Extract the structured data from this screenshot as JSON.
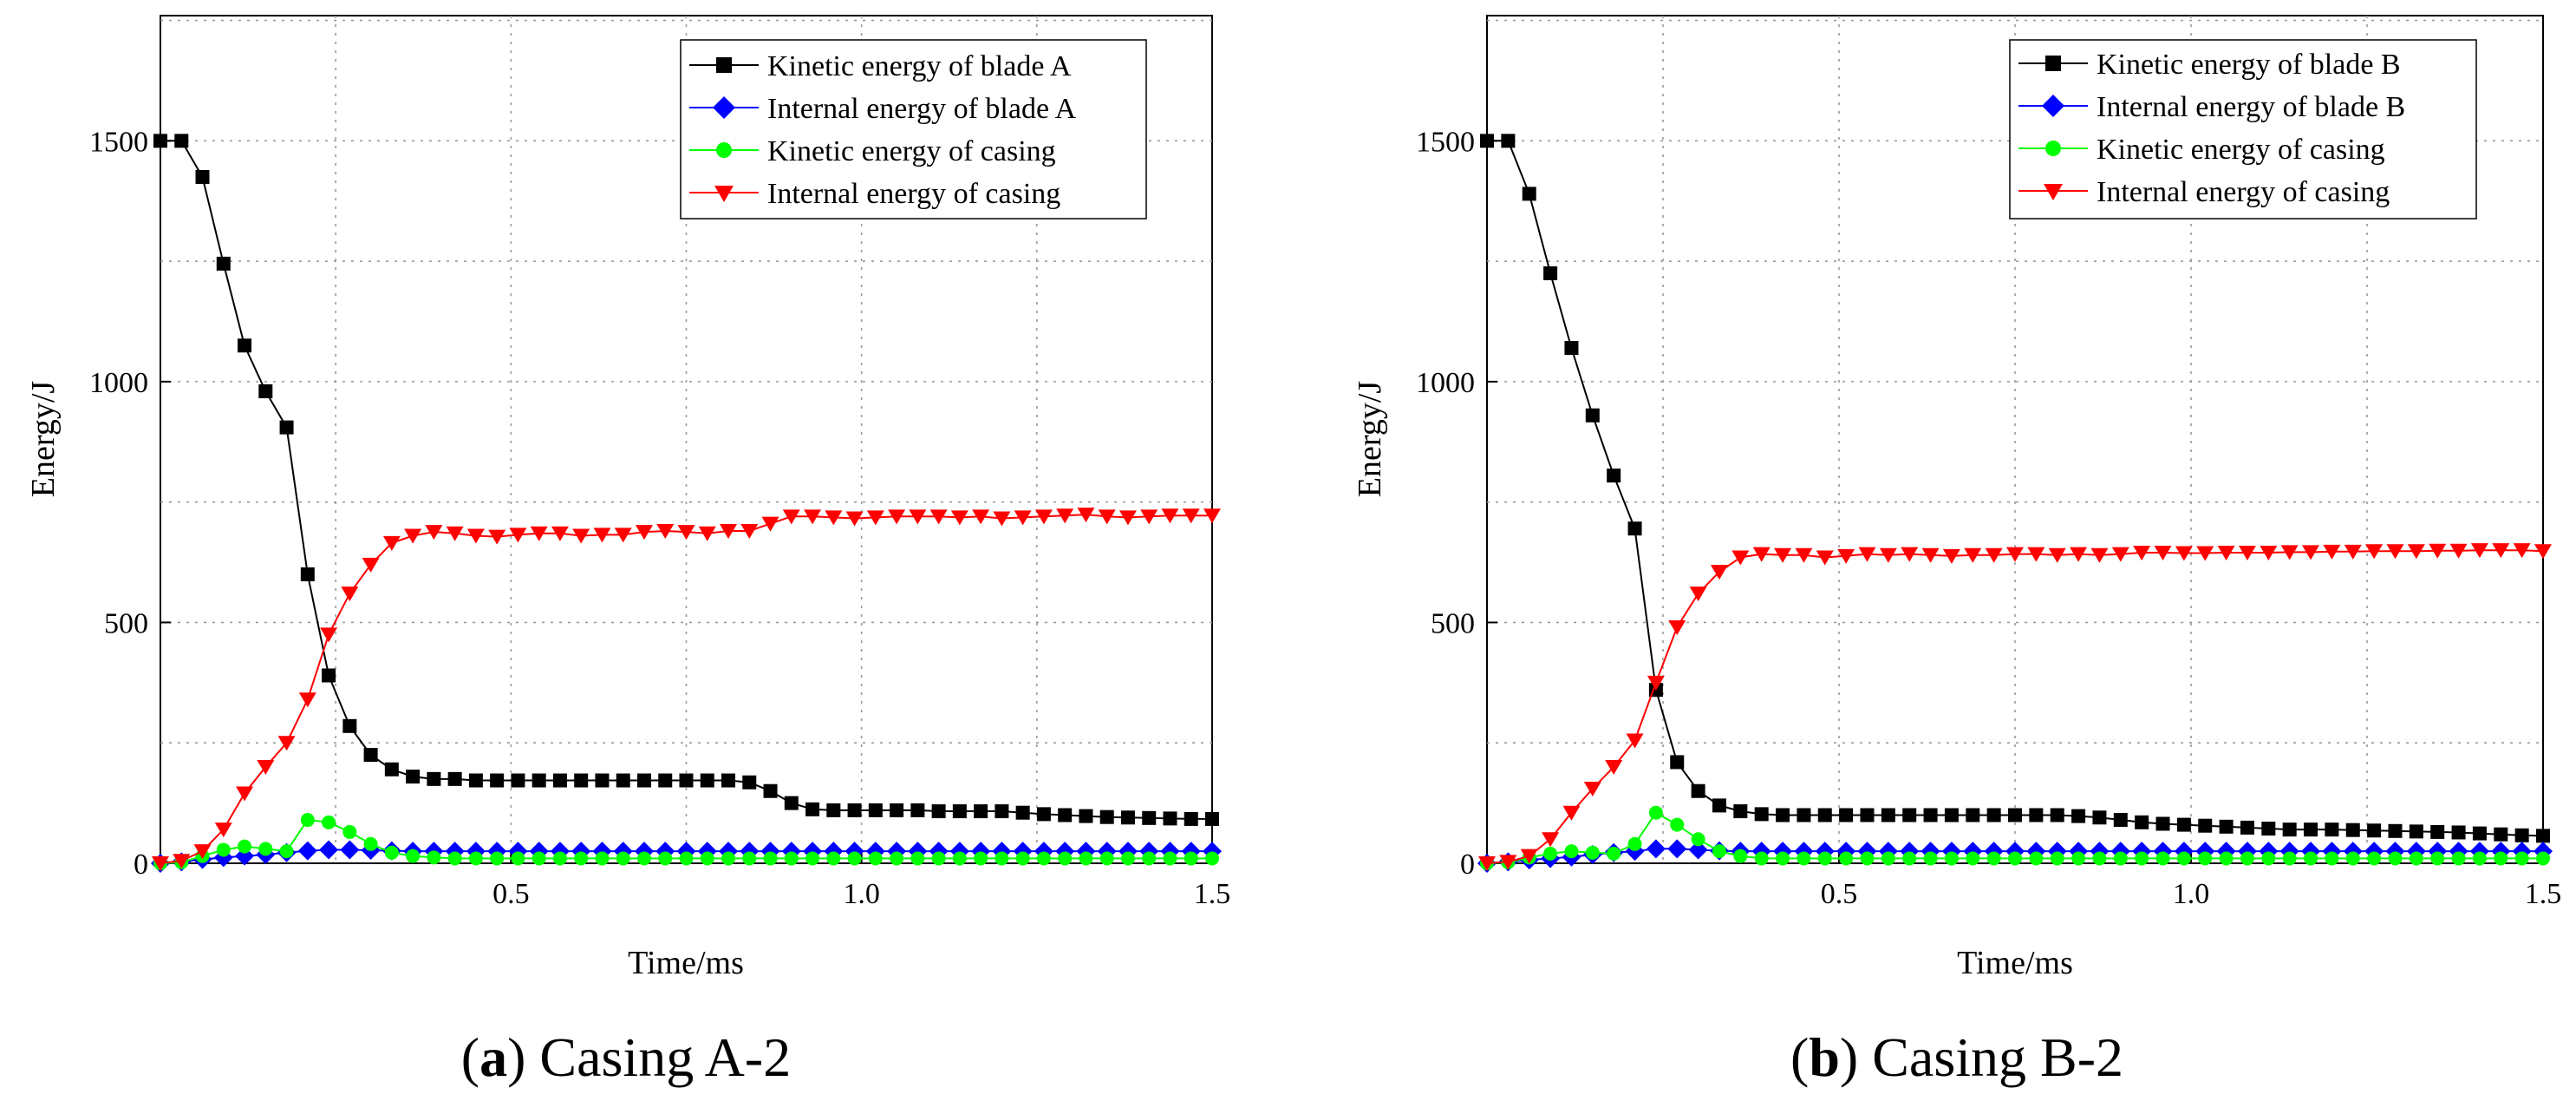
{
  "chart_data": [
    {
      "type": "line",
      "caption_letter": "a",
      "caption_text": "Casing A-2",
      "xlabel": "Time/ms",
      "ylabel": "Energy/J",
      "xlim": [
        0,
        1.5
      ],
      "ylim": [
        0,
        1760
      ],
      "xticks": [
        0.5,
        1.0,
        1.5
      ],
      "xtick_labels": [
        "0.5",
        "1.0",
        "1.5"
      ],
      "yticks": [
        0,
        500,
        1000,
        1500
      ],
      "ytick_labels": [
        "0",
        "500",
        "1000",
        "1500"
      ],
      "grid": true,
      "legend_position": "top-right",
      "x": [
        0,
        0.03,
        0.06,
        0.09,
        0.12,
        0.15,
        0.18,
        0.21,
        0.24,
        0.27,
        0.3,
        0.33,
        0.36,
        0.39,
        0.42,
        0.45,
        0.48,
        0.51,
        0.54,
        0.57,
        0.6,
        0.63,
        0.66,
        0.69,
        0.72,
        0.75,
        0.78,
        0.81,
        0.84,
        0.87,
        0.9,
        0.93,
        0.96,
        0.99,
        1.02,
        1.05,
        1.08,
        1.11,
        1.14,
        1.17,
        1.2,
        1.23,
        1.26,
        1.29,
        1.32,
        1.35,
        1.38,
        1.41,
        1.44,
        1.47,
        1.5
      ],
      "series": [
        {
          "name": "Kinetic energy of blade A",
          "color": "#000000",
          "marker": "square",
          "values": [
            1500,
            1500,
            1425,
            1245,
            1075,
            980,
            905,
            600,
            390,
            285,
            225,
            195,
            180,
            175,
            175,
            172,
            172,
            172,
            172,
            172,
            172,
            172,
            172,
            172,
            172,
            172,
            172,
            172,
            168,
            150,
            125,
            112,
            110,
            110,
            110,
            110,
            110,
            108,
            108,
            108,
            108,
            105,
            102,
            100,
            98,
            96,
            95,
            94,
            93,
            92,
            92
          ]
        },
        {
          "name": "Internal energy of blade A",
          "color": "#0000ff",
          "marker": "diamond",
          "values": [
            0,
            3,
            8,
            12,
            15,
            18,
            22,
            26,
            28,
            28,
            27,
            26,
            25,
            25,
            25,
            25,
            25,
            25,
            25,
            25,
            25,
            25,
            25,
            25,
            25,
            25,
            25,
            25,
            25,
            25,
            25,
            25,
            25,
            25,
            25,
            25,
            25,
            25,
            25,
            25,
            25,
            25,
            25,
            25,
            25,
            25,
            25,
            25,
            25,
            25,
            25
          ]
        },
        {
          "name": "Kinetic energy of casing",
          "color": "#00ff00",
          "marker": "circle",
          "values": [
            0,
            2,
            15,
            28,
            35,
            30,
            25,
            90,
            85,
            65,
            40,
            22,
            15,
            12,
            10,
            10,
            10,
            10,
            10,
            10,
            10,
            10,
            10,
            10,
            10,
            10,
            10,
            10,
            10,
            10,
            10,
            10,
            10,
            10,
            10,
            10,
            10,
            10,
            10,
            10,
            10,
            10,
            10,
            10,
            10,
            10,
            10,
            10,
            10,
            10,
            10
          ]
        },
        {
          "name": "Internal energy of casing",
          "color": "#ff0000",
          "marker": "triangle-down",
          "values": [
            0,
            5,
            25,
            70,
            145,
            200,
            250,
            340,
            475,
            560,
            620,
            665,
            680,
            688,
            685,
            680,
            678,
            682,
            685,
            685,
            680,
            682,
            682,
            688,
            690,
            688,
            685,
            690,
            690,
            705,
            720,
            720,
            718,
            716,
            718,
            720,
            720,
            720,
            718,
            720,
            716,
            718,
            720,
            722,
            724,
            720,
            718,
            720,
            722,
            722,
            722
          ]
        }
      ]
    },
    {
      "type": "line",
      "caption_letter": "b",
      "caption_text": "Casing B-2",
      "xlabel": "Time/ms",
      "ylabel": "Energy/J",
      "xlim": [
        0,
        1.5
      ],
      "ylim": [
        0,
        1760
      ],
      "xticks": [
        0.5,
        1.0,
        1.5
      ],
      "xtick_labels": [
        "0.5",
        "1.0",
        "1.5"
      ],
      "yticks": [
        0,
        500,
        1000,
        1500
      ],
      "ytick_labels": [
        "0",
        "500",
        "1000",
        "1500"
      ],
      "grid": true,
      "legend_position": "top-right",
      "x": [
        0,
        0.03,
        0.06,
        0.09,
        0.12,
        0.15,
        0.18,
        0.21,
        0.24,
        0.27,
        0.3,
        0.33,
        0.36,
        0.39,
        0.42,
        0.45,
        0.48,
        0.51,
        0.54,
        0.57,
        0.6,
        0.63,
        0.66,
        0.69,
        0.72,
        0.75,
        0.78,
        0.81,
        0.84,
        0.87,
        0.9,
        0.93,
        0.96,
        0.99,
        1.02,
        1.05,
        1.08,
        1.11,
        1.14,
        1.17,
        1.2,
        1.23,
        1.26,
        1.29,
        1.32,
        1.35,
        1.38,
        1.41,
        1.44,
        1.47,
        1.5
      ],
      "series": [
        {
          "name": "Kinetic energy of blade B",
          "color": "#000000",
          "marker": "square",
          "values": [
            1500,
            1500,
            1390,
            1225,
            1070,
            930,
            805,
            695,
            360,
            210,
            150,
            120,
            108,
            102,
            100,
            100,
            100,
            100,
            100,
            100,
            100,
            100,
            100,
            100,
            100,
            100,
            100,
            100,
            98,
            95,
            90,
            85,
            82,
            80,
            78,
            76,
            74,
            72,
            70,
            70,
            70,
            69,
            68,
            67,
            66,
            65,
            64,
            62,
            60,
            58,
            57
          ]
        },
        {
          "name": "Internal energy of blade B",
          "color": "#0000ff",
          "marker": "diamond",
          "values": [
            0,
            3,
            7,
            10,
            13,
            18,
            22,
            25,
            30,
            30,
            28,
            26,
            25,
            25,
            25,
            25,
            25,
            25,
            25,
            25,
            25,
            25,
            25,
            25,
            25,
            25,
            25,
            25,
            25,
            25,
            25,
            25,
            25,
            25,
            25,
            25,
            25,
            25,
            25,
            25,
            25,
            25,
            25,
            25,
            25,
            25,
            25,
            25,
            25,
            25,
            25
          ]
        },
        {
          "name": "Kinetic energy of casing",
          "color": "#00ff00",
          "marker": "circle",
          "values": [
            0,
            2,
            12,
            20,
            25,
            22,
            20,
            40,
            105,
            80,
            50,
            25,
            15,
            10,
            10,
            10,
            10,
            10,
            10,
            10,
            10,
            10,
            10,
            10,
            10,
            10,
            10,
            10,
            10,
            10,
            10,
            10,
            10,
            10,
            10,
            10,
            10,
            10,
            10,
            10,
            10,
            10,
            10,
            10,
            10,
            10,
            10,
            10,
            10,
            10,
            10
          ]
        },
        {
          "name": "Internal energy of casing",
          "color": "#ff0000",
          "marker": "triangle-down",
          "values": [
            0,
            3,
            15,
            50,
            105,
            155,
            200,
            255,
            375,
            490,
            560,
            605,
            635,
            642,
            640,
            640,
            635,
            638,
            642,
            640,
            642,
            640,
            638,
            640,
            640,
            642,
            642,
            640,
            642,
            640,
            642,
            645,
            645,
            644,
            644,
            645,
            645,
            645,
            646,
            646,
            647,
            647,
            648,
            648,
            648,
            649,
            649,
            650,
            650,
            650,
            648
          ]
        }
      ]
    }
  ]
}
